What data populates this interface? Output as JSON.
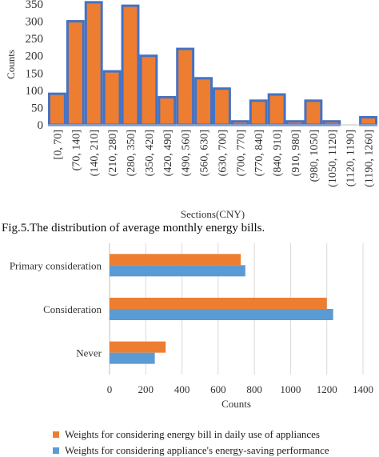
{
  "caption": "Fig.5.The distribution of average monthly energy bills.",
  "chart_data": [
    {
      "type": "bar",
      "ylabel": "Counts",
      "xlabel": "Sections(CNY)",
      "ylim": [
        0,
        350
      ],
      "yticks": [
        0,
        50,
        100,
        150,
        200,
        250,
        300,
        350
      ],
      "categories": [
        "[0, 70]",
        "(70, 140]",
        "(140, 210]",
        "(210, 280]",
        "(280, 350]",
        "(350, 420]",
        "(420, 490]",
        "(490, 560]",
        "(560, 630]",
        "(630, 700]",
        "(700, 770]",
        "(770, 840]",
        "(840, 910]",
        "(910, 980]",
        "(980, 1050]",
        "(1050, 1120]",
        "(1120, 1190]",
        "(1190, 1260]"
      ],
      "values": [
        90,
        300,
        355,
        155,
        345,
        200,
        80,
        220,
        135,
        105,
        10,
        70,
        88,
        10,
        70,
        10,
        0,
        22
      ],
      "colors": {
        "fill": "#ed7d31",
        "stroke": "#4472c4"
      },
      "grid": false
    },
    {
      "type": "bar",
      "orientation": "horizontal",
      "xlabel": "Counts",
      "xlim": [
        0,
        1400
      ],
      "xticks": [
        0,
        200,
        400,
        600,
        800,
        1000,
        1200,
        1400
      ],
      "categories": [
        "Primary consideration",
        "Consideration",
        "Never"
      ],
      "series": [
        {
          "name": "Weights for considering energy bill in daily use of appliances",
          "values": [
            725,
            1200,
            310
          ],
          "color": "#ed7d31"
        },
        {
          "name": "Weights for considering appliance's energy-saving performance",
          "values": [
            750,
            1235,
            250
          ],
          "color": "#5b9bd5"
        }
      ],
      "legend": "bottom",
      "grid": true
    }
  ]
}
